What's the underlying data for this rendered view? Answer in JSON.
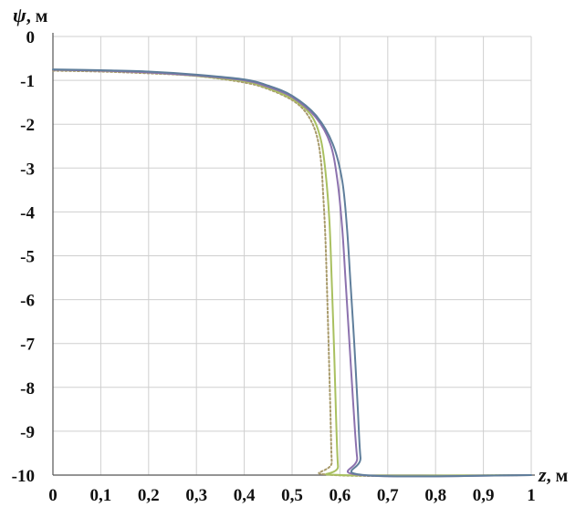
{
  "chart_data": {
    "type": "line",
    "ylabel_symbol": "ψ",
    "ylabel_unit": ", м",
    "xlabel_symbol": "z",
    "xlabel_unit": ", м",
    "xlim": [
      0,
      1
    ],
    "ylim": [
      -10,
      0
    ],
    "grid": true,
    "x_ticks": [
      {
        "value": 0,
        "label": "0"
      },
      {
        "value": 0.1,
        "label": "0,1"
      },
      {
        "value": 0.2,
        "label": "0,2"
      },
      {
        "value": 0.3,
        "label": "0,3"
      },
      {
        "value": 0.4,
        "label": "0,4"
      },
      {
        "value": 0.5,
        "label": "0,5"
      },
      {
        "value": 0.6,
        "label": "0,6"
      },
      {
        "value": 0.7,
        "label": "0,7"
      },
      {
        "value": 0.8,
        "label": "0,8"
      },
      {
        "value": 0.9,
        "label": "0,9"
      },
      {
        "value": 1,
        "label": "1"
      }
    ],
    "y_ticks": [
      {
        "value": 0,
        "label": "0"
      },
      {
        "value": -1,
        "label": "-1"
      },
      {
        "value": -2,
        "label": "-2"
      },
      {
        "value": -3,
        "label": "-3"
      },
      {
        "value": -4,
        "label": "-4"
      },
      {
        "value": -5,
        "label": "-5"
      },
      {
        "value": -6,
        "label": "-6"
      },
      {
        "value": -7,
        "label": "-7"
      },
      {
        "value": -8,
        "label": "-8"
      },
      {
        "value": -9,
        "label": "-9"
      },
      {
        "value": -10,
        "label": "-10"
      }
    ],
    "series": [
      {
        "color": "#a89a6a",
        "dash": "2,2.5",
        "points": [
          [
            0,
            -0.78
          ],
          [
            0.1,
            -0.8
          ],
          [
            0.2,
            -0.84
          ],
          [
            0.3,
            -0.9
          ],
          [
            0.4,
            -1.05
          ],
          [
            0.45,
            -1.2
          ],
          [
            0.5,
            -1.45
          ],
          [
            0.53,
            -1.75
          ],
          [
            0.55,
            -2.2
          ],
          [
            0.56,
            -2.8
          ],
          [
            0.565,
            -3.6
          ],
          [
            0.57,
            -4.7
          ],
          [
            0.575,
            -6.5
          ],
          [
            0.58,
            -8.5
          ],
          [
            0.583,
            -9.7
          ],
          [
            0.588,
            -10
          ],
          [
            1,
            -10
          ]
        ]
      },
      {
        "color": "#a9c060",
        "dash": "",
        "points": [
          [
            0,
            -0.76
          ],
          [
            0.1,
            -0.78
          ],
          [
            0.2,
            -0.82
          ],
          [
            0.3,
            -0.9
          ],
          [
            0.4,
            -1.02
          ],
          [
            0.45,
            -1.18
          ],
          [
            0.5,
            -1.42
          ],
          [
            0.54,
            -1.8
          ],
          [
            0.56,
            -2.35
          ],
          [
            0.57,
            -3.1
          ],
          [
            0.578,
            -4.2
          ],
          [
            0.583,
            -5.6
          ],
          [
            0.588,
            -7.2
          ],
          [
            0.592,
            -8.7
          ],
          [
            0.596,
            -9.8
          ],
          [
            0.602,
            -10
          ],
          [
            1,
            -10
          ]
        ]
      },
      {
        "color": "#8c72ae",
        "dash": "",
        "points": [
          [
            0,
            -0.76
          ],
          [
            0.1,
            -0.78
          ],
          [
            0.2,
            -0.82
          ],
          [
            0.3,
            -0.89
          ],
          [
            0.4,
            -1.0
          ],
          [
            0.45,
            -1.15
          ],
          [
            0.5,
            -1.38
          ],
          [
            0.55,
            -1.85
          ],
          [
            0.58,
            -2.45
          ],
          [
            0.595,
            -3.3
          ],
          [
            0.605,
            -4.4
          ],
          [
            0.612,
            -5.6
          ],
          [
            0.62,
            -7.0
          ],
          [
            0.628,
            -8.4
          ],
          [
            0.636,
            -9.6
          ],
          [
            0.645,
            -10
          ],
          [
            1,
            -10
          ]
        ]
      },
      {
        "color": "#5f7e9b",
        "dash": "",
        "points": [
          [
            0,
            -0.75
          ],
          [
            0.1,
            -0.77
          ],
          [
            0.2,
            -0.8
          ],
          [
            0.3,
            -0.87
          ],
          [
            0.4,
            -0.98
          ],
          [
            0.45,
            -1.12
          ],
          [
            0.5,
            -1.35
          ],
          [
            0.55,
            -1.8
          ],
          [
            0.585,
            -2.45
          ],
          [
            0.605,
            -3.3
          ],
          [
            0.615,
            -4.4
          ],
          [
            0.622,
            -5.6
          ],
          [
            0.63,
            -7.0
          ],
          [
            0.637,
            -8.4
          ],
          [
            0.643,
            -9.6
          ],
          [
            0.652,
            -10
          ],
          [
            1,
            -10
          ]
        ]
      }
    ]
  }
}
